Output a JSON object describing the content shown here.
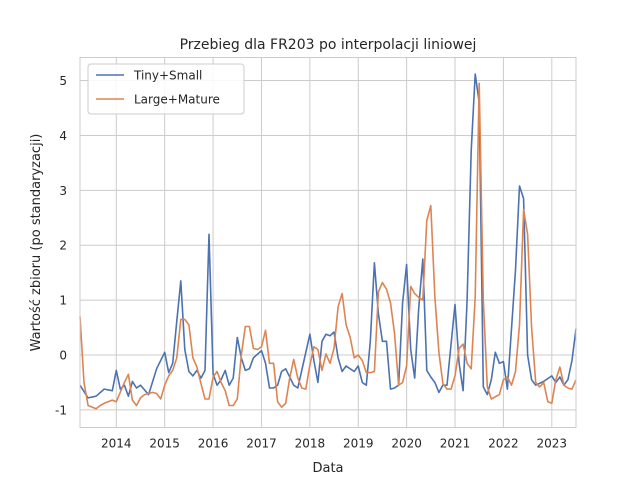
{
  "chart_data": {
    "type": "line",
    "title": "Przebieg dla FR203 po interpolacji liniowej",
    "xlabel": "Data",
    "ylabel": "Wartość zbioru (po standaryzacji)",
    "x_range": [
      "2013-04",
      "2023-07"
    ],
    "ylim": [
      -1.32,
      5.42
    ],
    "y_ticks": [
      -1,
      0,
      1,
      2,
      3,
      4,
      5
    ],
    "x_ticks": [
      {
        "label": "2014",
        "date": "2014-01"
      },
      {
        "label": "2015",
        "date": "2015-01"
      },
      {
        "label": "2016",
        "date": "2016-01"
      },
      {
        "label": "2017",
        "date": "2017-01"
      },
      {
        "label": "2018",
        "date": "2018-01"
      },
      {
        "label": "2019",
        "date": "2019-01"
      },
      {
        "label": "2020",
        "date": "2020-01"
      },
      {
        "label": "2021",
        "date": "2021-01"
      },
      {
        "label": "2022",
        "date": "2022-01"
      },
      {
        "label": "2023",
        "date": "2023-01"
      }
    ],
    "grid": true,
    "legend_position": "top-left",
    "series": [
      {
        "name": "Tiny+Small",
        "color": "#4c72b0",
        "points": [
          [
            "2013-04",
            -0.55
          ],
          [
            "2013-06",
            -0.78
          ],
          [
            "2013-08",
            -0.75
          ],
          [
            "2013-10",
            -0.62
          ],
          [
            "2013-12",
            -0.65
          ],
          [
            "2014-01",
            -0.28
          ],
          [
            "2014-02",
            -0.62
          ],
          [
            "2014-03",
            -0.55
          ],
          [
            "2014-04",
            -0.75
          ],
          [
            "2014-05",
            -0.48
          ],
          [
            "2014-06",
            -0.6
          ],
          [
            "2014-07",
            -0.55
          ],
          [
            "2014-09",
            -0.72
          ],
          [
            "2014-11",
            -0.25
          ],
          [
            "2015-01",
            0.05
          ],
          [
            "2015-02",
            -0.32
          ],
          [
            "2015-03",
            -0.15
          ],
          [
            "2015-04",
            0.62
          ],
          [
            "2015-05",
            1.35
          ],
          [
            "2015-06",
            0.1
          ],
          [
            "2015-07",
            -0.3
          ],
          [
            "2015-08",
            -0.38
          ],
          [
            "2015-09",
            -0.28
          ],
          [
            "2015-10",
            -0.42
          ],
          [
            "2015-11",
            -0.28
          ],
          [
            "2015-12",
            2.2
          ],
          [
            "2016-01",
            -0.35
          ],
          [
            "2016-02",
            -0.55
          ],
          [
            "2016-03",
            -0.45
          ],
          [
            "2016-04",
            -0.28
          ],
          [
            "2016-05",
            -0.55
          ],
          [
            "2016-06",
            -0.42
          ],
          [
            "2016-07",
            0.32
          ],
          [
            "2016-08",
            -0.05
          ],
          [
            "2016-09",
            -0.28
          ],
          [
            "2016-10",
            -0.25
          ],
          [
            "2016-11",
            -0.05
          ],
          [
            "2017-01",
            0.08
          ],
          [
            "2017-02",
            -0.15
          ],
          [
            "2017-03",
            -0.6
          ],
          [
            "2017-04",
            -0.6
          ],
          [
            "2017-05",
            -0.55
          ],
          [
            "2017-06",
            -0.3
          ],
          [
            "2017-07",
            -0.25
          ],
          [
            "2017-09",
            -0.55
          ],
          [
            "2017-10",
            -0.6
          ],
          [
            "2018-01",
            0.38
          ],
          [
            "2018-02",
            -0.1
          ],
          [
            "2018-03",
            -0.5
          ],
          [
            "2018-04",
            0.25
          ],
          [
            "2018-05",
            0.38
          ],
          [
            "2018-06",
            0.35
          ],
          [
            "2018-07",
            0.42
          ],
          [
            "2018-08",
            -0.05
          ],
          [
            "2018-09",
            -0.3
          ],
          [
            "2018-10",
            -0.2
          ],
          [
            "2018-11",
            -0.25
          ],
          [
            "2018-12",
            -0.3
          ],
          [
            "2019-01",
            -0.2
          ],
          [
            "2019-02",
            -0.5
          ],
          [
            "2019-03",
            -0.55
          ],
          [
            "2019-04",
            0.25
          ],
          [
            "2019-05",
            1.68
          ],
          [
            "2019-06",
            0.75
          ],
          [
            "2019-07",
            0.25
          ],
          [
            "2019-08",
            0.25
          ],
          [
            "2019-09",
            -0.62
          ],
          [
            "2019-10",
            -0.6
          ],
          [
            "2019-11",
            -0.55
          ],
          [
            "2019-12",
            0.95
          ],
          [
            "2020-01",
            1.65
          ],
          [
            "2020-02",
            0.1
          ],
          [
            "2020-03",
            -0.42
          ],
          [
            "2020-04",
            0.85
          ],
          [
            "2020-05",
            1.75
          ],
          [
            "2020-06",
            -0.28
          ],
          [
            "2020-07",
            -0.4
          ],
          [
            "2020-08",
            -0.5
          ],
          [
            "2020-09",
            -0.68
          ],
          [
            "2020-10",
            -0.55
          ],
          [
            "2020-11",
            -0.55
          ],
          [
            "2021-01",
            0.92
          ],
          [
            "2021-02",
            -0.15
          ],
          [
            "2021-03",
            -0.65
          ],
          [
            "2021-04",
            1.0
          ],
          [
            "2021-05",
            3.72
          ],
          [
            "2021-06",
            5.12
          ],
          [
            "2021-07",
            4.6
          ],
          [
            "2021-08",
            -0.58
          ],
          [
            "2021-09",
            -0.72
          ],
          [
            "2021-10",
            -0.45
          ],
          [
            "2021-11",
            0.05
          ],
          [
            "2021-12",
            -0.15
          ],
          [
            "2022-01",
            -0.12
          ],
          [
            "2022-02",
            -0.62
          ],
          [
            "2022-04",
            1.55
          ],
          [
            "2022-05",
            3.08
          ],
          [
            "2022-06",
            2.85
          ],
          [
            "2022-07",
            0.0
          ],
          [
            "2022-08",
            -0.45
          ],
          [
            "2022-09",
            -0.55
          ],
          [
            "2022-11",
            -0.48
          ],
          [
            "2023-01",
            -0.38
          ],
          [
            "2023-02",
            -0.5
          ],
          [
            "2023-03",
            -0.4
          ],
          [
            "2023-04",
            -0.55
          ],
          [
            "2023-05",
            -0.45
          ],
          [
            "2023-06",
            -0.1
          ],
          [
            "2023-07",
            0.48
          ]
        ]
      },
      {
        "name": "Large+Mature",
        "color": "#dd8452",
        "points": [
          [
            "2013-04",
            0.7
          ],
          [
            "2013-05",
            -0.5
          ],
          [
            "2013-06",
            -0.92
          ],
          [
            "2013-08",
            -0.98
          ],
          [
            "2013-09",
            -0.92
          ],
          [
            "2013-10",
            -0.88
          ],
          [
            "2013-12",
            -0.82
          ],
          [
            "2014-01",
            -0.85
          ],
          [
            "2014-03",
            -0.5
          ],
          [
            "2014-04",
            -0.35
          ],
          [
            "2014-05",
            -0.82
          ],
          [
            "2014-06",
            -0.92
          ],
          [
            "2014-07",
            -0.78
          ],
          [
            "2014-08",
            -0.72
          ],
          [
            "2014-09",
            -0.7
          ],
          [
            "2014-10",
            -0.68
          ],
          [
            "2014-11",
            -0.7
          ],
          [
            "2014-12",
            -0.8
          ],
          [
            "2015-01",
            -0.55
          ],
          [
            "2015-02",
            -0.38
          ],
          [
            "2015-03",
            -0.28
          ],
          [
            "2015-04",
            -0.05
          ],
          [
            "2015-05",
            0.65
          ],
          [
            "2015-06",
            0.65
          ],
          [
            "2015-07",
            0.55
          ],
          [
            "2015-08",
            -0.05
          ],
          [
            "2015-09",
            -0.22
          ],
          [
            "2015-10",
            -0.52
          ],
          [
            "2015-11",
            -0.8
          ],
          [
            "2015-12",
            -0.8
          ],
          [
            "2016-01",
            -0.4
          ],
          [
            "2016-02",
            -0.3
          ],
          [
            "2016-03",
            -0.5
          ],
          [
            "2016-04",
            -0.65
          ],
          [
            "2016-05",
            -0.92
          ],
          [
            "2016-06",
            -0.92
          ],
          [
            "2016-07",
            -0.8
          ],
          [
            "2016-08",
            0.0
          ],
          [
            "2016-09",
            0.52
          ],
          [
            "2016-10",
            0.52
          ],
          [
            "2016-11",
            0.12
          ],
          [
            "2016-12",
            0.1
          ],
          [
            "2017-01",
            0.15
          ],
          [
            "2017-02",
            0.45
          ],
          [
            "2017-03",
            -0.15
          ],
          [
            "2017-04",
            -0.15
          ],
          [
            "2017-05",
            -0.85
          ],
          [
            "2017-06",
            -0.95
          ],
          [
            "2017-07",
            -0.88
          ],
          [
            "2017-08",
            -0.42
          ],
          [
            "2017-09",
            -0.08
          ],
          [
            "2017-10",
            -0.42
          ],
          [
            "2017-11",
            -0.6
          ],
          [
            "2017-12",
            -0.62
          ],
          [
            "2018-01",
            -0.18
          ],
          [
            "2018-02",
            0.15
          ],
          [
            "2018-03",
            0.1
          ],
          [
            "2018-04",
            -0.28
          ],
          [
            "2018-05",
            0.02
          ],
          [
            "2018-06",
            -0.15
          ],
          [
            "2018-07",
            0.12
          ],
          [
            "2018-08",
            0.88
          ],
          [
            "2018-09",
            1.12
          ],
          [
            "2018-10",
            0.55
          ],
          [
            "2018-11",
            0.32
          ],
          [
            "2018-12",
            -0.05
          ],
          [
            "2019-01",
            0.0
          ],
          [
            "2019-02",
            -0.1
          ],
          [
            "2019-03",
            -0.32
          ],
          [
            "2019-04",
            -0.32
          ],
          [
            "2019-05",
            -0.3
          ],
          [
            "2019-06",
            1.15
          ],
          [
            "2019-07",
            1.32
          ],
          [
            "2019-08",
            1.2
          ],
          [
            "2019-09",
            0.95
          ],
          [
            "2019-10",
            0.4
          ],
          [
            "2019-11",
            -0.55
          ],
          [
            "2019-12",
            -0.5
          ],
          [
            "2020-01",
            -0.2
          ],
          [
            "2020-02",
            1.25
          ],
          [
            "2020-03",
            1.12
          ],
          [
            "2020-04",
            1.05
          ],
          [
            "2020-05",
            1.0
          ],
          [
            "2020-06",
            2.45
          ],
          [
            "2020-07",
            2.72
          ],
          [
            "2020-08",
            1.05
          ],
          [
            "2020-09",
            0.05
          ],
          [
            "2020-10",
            -0.52
          ],
          [
            "2020-11",
            -0.62
          ],
          [
            "2020-12",
            -0.62
          ],
          [
            "2021-01",
            -0.38
          ],
          [
            "2021-02",
            0.12
          ],
          [
            "2021-03",
            0.2
          ],
          [
            "2021-04",
            -0.15
          ],
          [
            "2021-05",
            -0.25
          ],
          [
            "2021-06",
            1.05
          ],
          [
            "2021-07",
            4.95
          ],
          [
            "2021-08",
            1.0
          ],
          [
            "2021-09",
            -0.58
          ],
          [
            "2021-10",
            -0.8
          ],
          [
            "2021-12",
            -0.72
          ],
          [
            "2022-01",
            -0.45
          ],
          [
            "2022-02",
            -0.4
          ],
          [
            "2022-03",
            -0.55
          ],
          [
            "2022-04",
            -0.3
          ],
          [
            "2022-05",
            0.55
          ],
          [
            "2022-06",
            2.65
          ],
          [
            "2022-07",
            2.2
          ],
          [
            "2022-08",
            0.5
          ],
          [
            "2022-09",
            -0.5
          ],
          [
            "2022-10",
            -0.58
          ],
          [
            "2022-11",
            -0.5
          ],
          [
            "2022-12",
            -0.85
          ],
          [
            "2023-01",
            -0.88
          ],
          [
            "2023-02",
            -0.45
          ],
          [
            "2023-03",
            -0.22
          ],
          [
            "2023-04",
            -0.55
          ],
          [
            "2023-05",
            -0.6
          ],
          [
            "2023-06",
            -0.62
          ],
          [
            "2023-07",
            -0.45
          ]
        ]
      }
    ]
  }
}
